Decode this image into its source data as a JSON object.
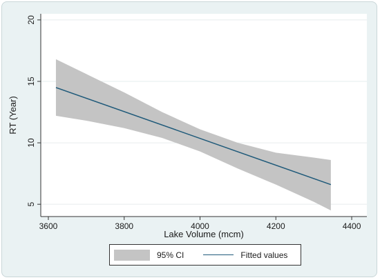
{
  "chart_data": {
    "type": "line",
    "xlabel": "Lake Volume (mcm)",
    "ylabel": "RT (Year)",
    "xlim": [
      3580,
      4440
    ],
    "ylim": [
      4,
      20.5
    ],
    "xticks": [
      3600,
      3800,
      4000,
      4200,
      4400
    ],
    "yticks": [
      5,
      10,
      15,
      20
    ],
    "grid": "horizontal",
    "legend_position": "bottom",
    "colors": {
      "line": "#1f5a7a",
      "band": "#c4c4c4",
      "plot_bg": "#ffffff",
      "frame_bg": "#eaf2f3"
    },
    "series": [
      {
        "name": "Fitted values",
        "kind": "line",
        "x": [
          3620,
          4345
        ],
        "y": [
          14.5,
          6.6
        ]
      },
      {
        "name": "95% CI",
        "kind": "band",
        "x": [
          3620,
          3700,
          3800,
          3900,
          4000,
          4100,
          4200,
          4300,
          4345
        ],
        "y_lower": [
          12.2,
          11.8,
          11.2,
          10.4,
          9.3,
          7.9,
          6.6,
          5.2,
          4.5
        ],
        "y_upper": [
          16.8,
          15.6,
          14.1,
          12.5,
          11.1,
          10.0,
          9.2,
          8.8,
          8.6
        ]
      }
    ]
  },
  "legend": {
    "ci_label": "95% CI",
    "fit_label": "Fitted values"
  }
}
